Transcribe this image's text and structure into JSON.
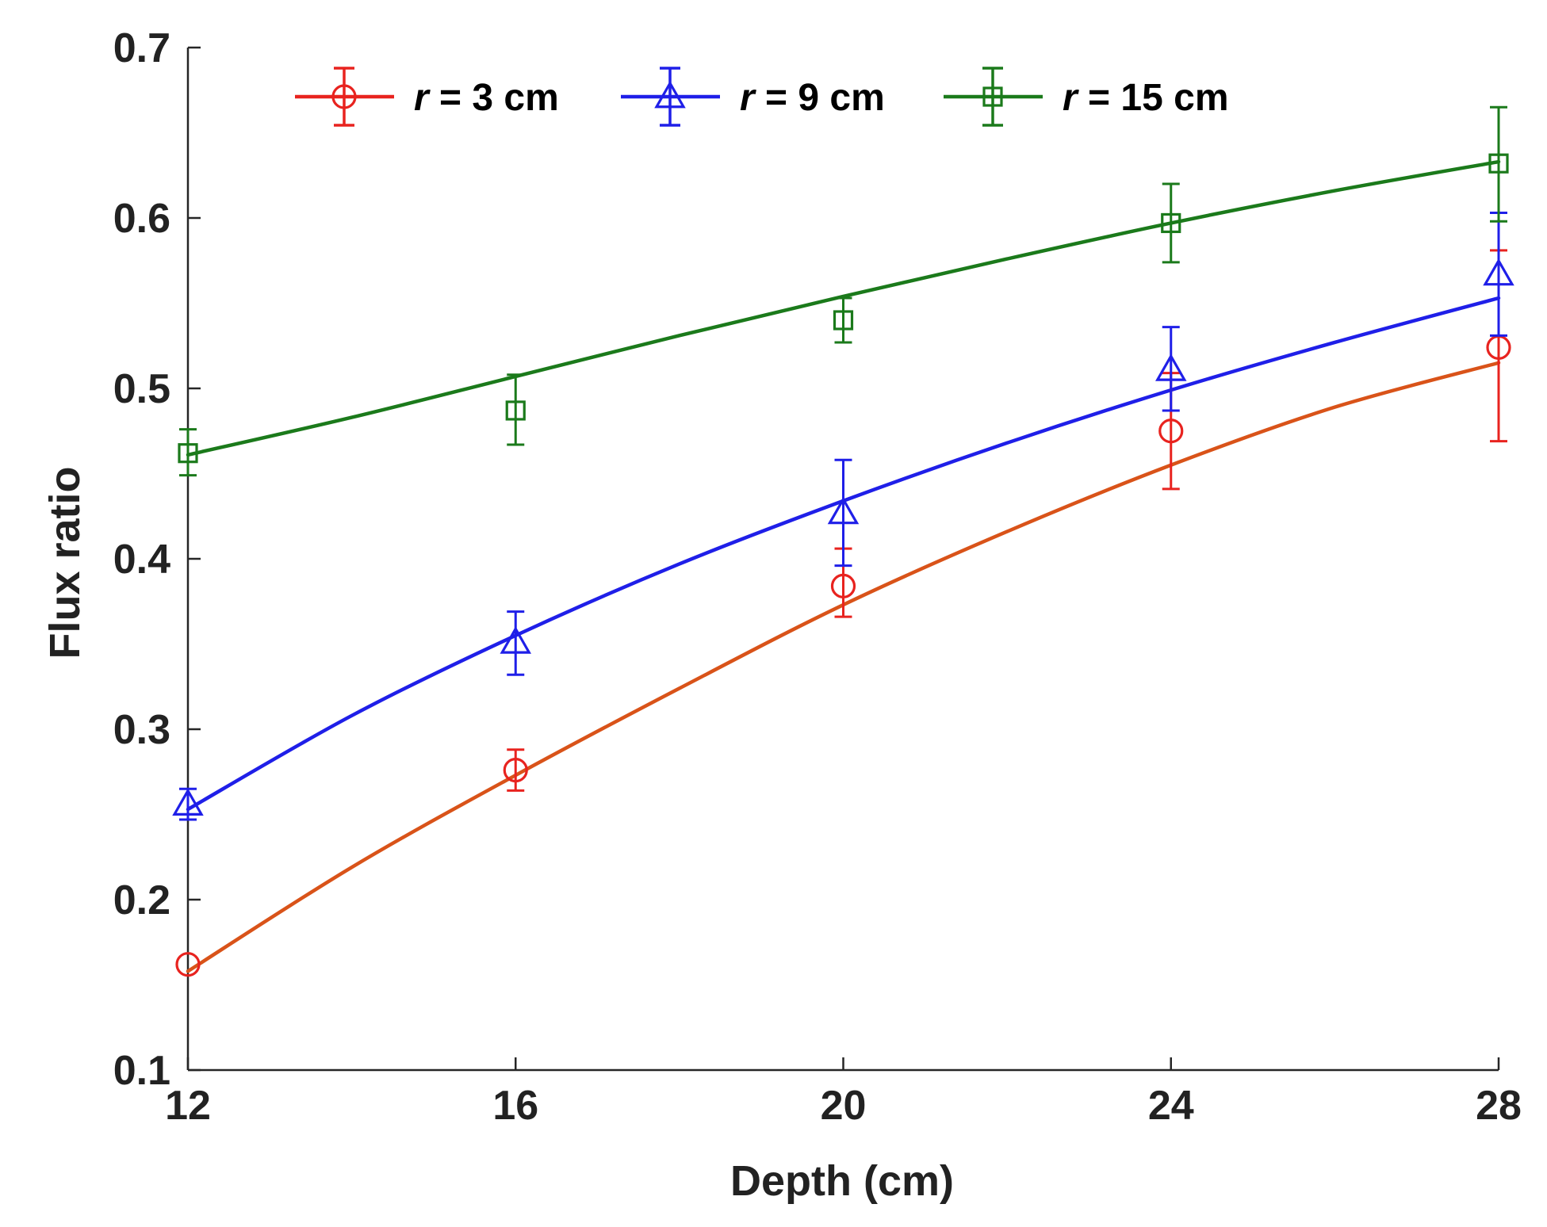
{
  "chart_data": {
    "type": "line",
    "title": "",
    "xlabel": "Depth (cm)",
    "ylabel": "Flux ratio",
    "xlim": [
      12,
      28
    ],
    "ylim": [
      0.1,
      0.7
    ],
    "xticks": [
      12,
      16,
      20,
      24,
      28
    ],
    "xtick_labels": [
      "12",
      "16",
      "20",
      "24",
      "28"
    ],
    "yticks": [
      0.1,
      0.2,
      0.3,
      0.4,
      0.5,
      0.6,
      0.7
    ],
    "ytick_labels": [
      "0.1",
      "0.2",
      "0.3",
      "0.4",
      "0.5",
      "0.6",
      "0.7"
    ],
    "grid": false,
    "legend_position": "top",
    "series": [
      {
        "name": "r = 3 cm",
        "legend_var": "r",
        "legend_rest": " = 3 cm",
        "marker": "circle",
        "marker_color": "#e8231f",
        "fit_color": "#d95319",
        "x": [
          12,
          16,
          20,
          24,
          28
        ],
        "y": [
          0.162,
          0.276,
          0.384,
          0.475,
          0.524
        ],
        "err_low": [
          0.162,
          0.264,
          0.366,
          0.441,
          0.469
        ],
        "err_high": [
          0.162,
          0.288,
          0.406,
          0.509,
          0.581
        ],
        "fit_x": [
          12,
          14,
          16,
          18,
          20,
          22,
          24,
          26,
          28
        ],
        "fit_y": [
          0.158,
          0.219,
          0.273,
          0.324,
          0.373,
          0.416,
          0.455,
          0.489,
          0.515
        ]
      },
      {
        "name": "r = 9 cm",
        "legend_var": "r",
        "legend_rest": " = 9 cm",
        "marker": "triangle",
        "marker_color": "#1f1fe8",
        "fit_color": "#1f1fe8",
        "x": [
          12,
          16,
          20,
          24,
          28
        ],
        "y": [
          0.256,
          0.351,
          0.427,
          0.511,
          0.567
        ],
        "err_low": [
          0.247,
          0.332,
          0.396,
          0.487,
          0.531
        ],
        "err_high": [
          0.265,
          0.369,
          0.458,
          0.536,
          0.603
        ],
        "fit_x": [
          12,
          14,
          16,
          18,
          20,
          22,
          24,
          26,
          28
        ],
        "fit_y": [
          0.253,
          0.308,
          0.355,
          0.397,
          0.434,
          0.468,
          0.499,
          0.527,
          0.553
        ]
      },
      {
        "name": "r = 15 cm",
        "legend_var": "r",
        "legend_rest": " = 15 cm",
        "marker": "square",
        "marker_color": "#1b7a1b",
        "fit_color": "#1b7a1b",
        "x": [
          12,
          16,
          20,
          24,
          28
        ],
        "y": [
          0.462,
          0.487,
          0.54,
          0.597,
          0.632
        ],
        "err_low": [
          0.449,
          0.467,
          0.527,
          0.574,
          0.598
        ],
        "err_high": [
          0.476,
          0.508,
          0.553,
          0.62,
          0.665
        ],
        "fit_x": [
          12,
          14,
          16,
          18,
          20,
          22,
          24,
          26,
          28
        ],
        "fit_y": [
          0.461,
          0.483,
          0.507,
          0.531,
          0.554,
          0.576,
          0.597,
          0.616,
          0.633
        ]
      }
    ]
  }
}
